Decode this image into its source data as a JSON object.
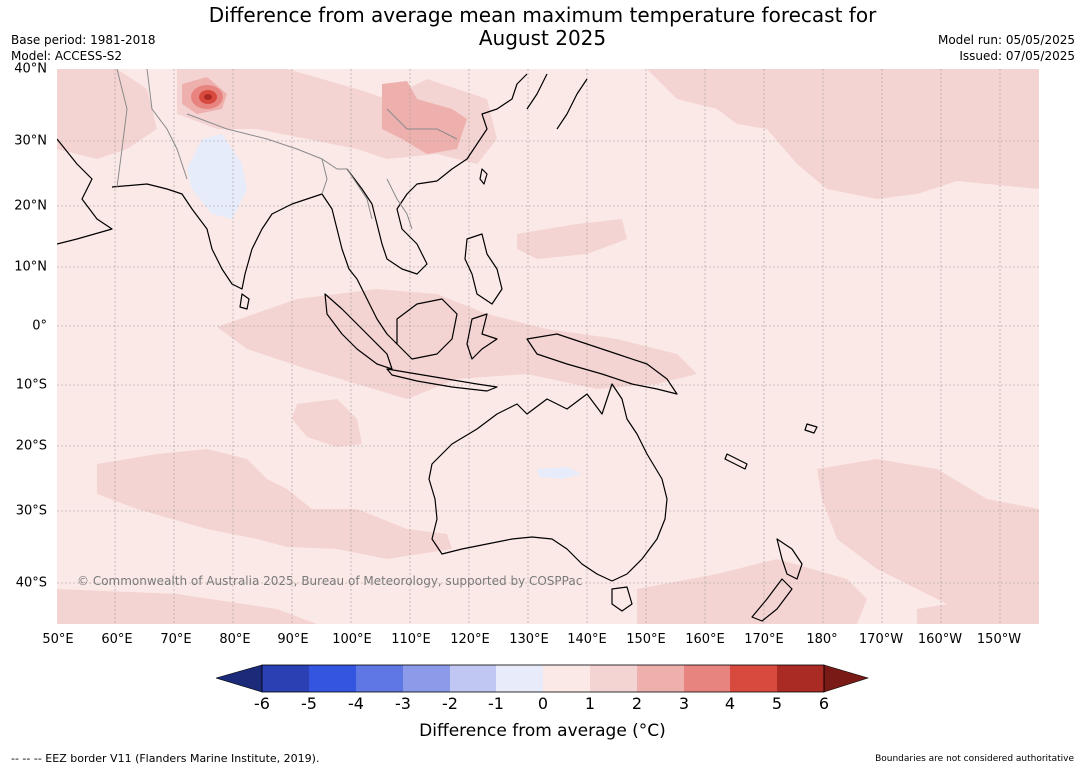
{
  "header": {
    "title_line1": "Difference from average mean maximum temperature forecast for",
    "title_line2": "August 2025",
    "base_period": "Base period: 1981-2018",
    "model": "Model: ACCESS-S2",
    "model_run": "Model run: 05/05/2025",
    "issued": "Issued: 07/05/2025"
  },
  "map": {
    "latitude_labels": [
      "40°N",
      "30°N",
      "20°N",
      "10°N",
      "0°",
      "10°S",
      "20°S",
      "30°S",
      "40°S"
    ],
    "longitude_labels": [
      "50°E",
      "60°E",
      "70°E",
      "80°E",
      "90°E",
      "100°E",
      "110°E",
      "120°E",
      "130°E",
      "140°E",
      "150°E",
      "160°E",
      "170°E",
      "180°",
      "170°W",
      "160°W",
      "150°W"
    ],
    "copyright": "© Commonwealth of Australia 2025, Bureau of Meteorology, supported by COSPPac",
    "colors": {
      "background_anomaly_0_1": "#fbe9e8",
      "anomaly_1_2": "#f4d4d2",
      "anomaly_2_3": "#eeb0ad",
      "anomaly_3_4": "#e8847f",
      "anomaly_minus1_0": "#e7ecfa",
      "coastline": "#000000",
      "borders": "#8a8a8a",
      "gridlines": "#9a9a9a"
    }
  },
  "colorbar": {
    "ticks": [
      "-6",
      "-5",
      "-4",
      "-3",
      "-2",
      "-1",
      "0",
      "1",
      "2",
      "3",
      "4",
      "5",
      "6"
    ],
    "colors": [
      "#1b2b7a",
      "#2a40b3",
      "#3355e0",
      "#5f77e3",
      "#8b9bea",
      "#bfc7f2",
      "#e8ecfa",
      "#fbe9e8",
      "#f4d4d2",
      "#eeb0ad",
      "#e8847f",
      "#d94a3e",
      "#aa2a24",
      "#7a1a16"
    ],
    "title": "Difference from average (°C)"
  },
  "footer": {
    "eez_note": "--  --  -- EEZ border V11 (Flanders Marine Institute, 2019).",
    "disclaimer": "Boundaries are not considered authoritative"
  }
}
